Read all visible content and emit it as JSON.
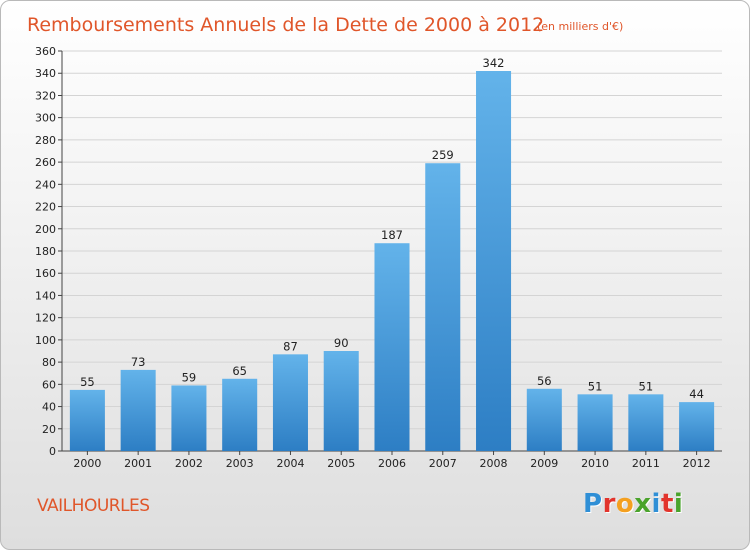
{
  "title": "Remboursements Annuels de la Dette de 2000 à 2012",
  "unit": "(en milliers d'€)",
  "location": "VAILHOURLES",
  "logo": {
    "letters": [
      "P",
      "r",
      "o",
      "x",
      "i",
      "t",
      "i"
    ],
    "colors": [
      "#2f8fd6",
      "#e2342c",
      "#f4a020",
      "#4aa32b",
      "#2f8fd6",
      "#e2342c",
      "#4aa32b"
    ]
  },
  "colors": {
    "bar_top": "#63b3ea",
    "bar_bottom": "#2d7ec4",
    "title": "#e0562a",
    "grid": "#d4d4d4"
  },
  "chart_data": {
    "type": "bar",
    "title": "Remboursements Annuels de la Dette de 2000 à 2012",
    "categories": [
      "2000",
      "2001",
      "2002",
      "2003",
      "2004",
      "2005",
      "2006",
      "2007",
      "2008",
      "2009",
      "2010",
      "2011",
      "2012"
    ],
    "values": [
      55,
      73,
      59,
      65,
      87,
      90,
      187,
      259,
      342,
      56,
      51,
      51,
      44
    ],
    "ylim": [
      0,
      360
    ],
    "ytick_step": 20,
    "grid": true,
    "data_labels": true
  }
}
